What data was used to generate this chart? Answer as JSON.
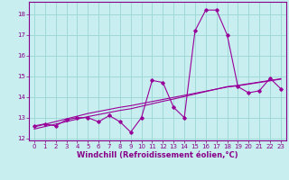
{
  "x_values": [
    0,
    1,
    2,
    3,
    4,
    5,
    6,
    7,
    8,
    9,
    10,
    11,
    12,
    13,
    14,
    15,
    16,
    17,
    18,
    19,
    20,
    21,
    22,
    23
  ],
  "y_main": [
    12.6,
    12.7,
    12.6,
    12.9,
    13.0,
    13.0,
    12.8,
    13.1,
    12.8,
    12.3,
    13.0,
    14.8,
    14.7,
    13.5,
    13.0,
    17.2,
    18.2,
    18.2,
    17.0,
    14.5,
    14.2,
    14.3,
    14.9,
    14.4
  ],
  "y_trend1": [
    12.55,
    12.68,
    12.81,
    12.94,
    13.07,
    13.2,
    13.3,
    13.4,
    13.5,
    13.58,
    13.68,
    13.78,
    13.88,
    13.98,
    14.08,
    14.18,
    14.28,
    14.38,
    14.48,
    14.54,
    14.62,
    14.7,
    14.78,
    14.86
  ],
  "y_trend2": [
    12.45,
    12.57,
    12.69,
    12.81,
    12.93,
    13.05,
    13.15,
    13.25,
    13.35,
    13.43,
    13.55,
    13.67,
    13.79,
    13.9,
    14.02,
    14.14,
    14.26,
    14.38,
    14.5,
    14.56,
    14.64,
    14.72,
    14.8,
    14.88
  ],
  "line_color": "#990099",
  "bg_color": "#c8eef0",
  "grid_color": "#a0d8d8",
  "ylim": [
    11.9,
    18.6
  ],
  "xlim": [
    -0.5,
    23.5
  ],
  "yticks": [
    12,
    13,
    14,
    15,
    16,
    17,
    18
  ],
  "xticks": [
    0,
    1,
    2,
    3,
    4,
    5,
    6,
    7,
    8,
    9,
    10,
    11,
    12,
    13,
    14,
    15,
    16,
    17,
    18,
    19,
    20,
    21,
    22,
    23
  ],
  "xlabel": "Windchill (Refroidissement éolien,°C)",
  "font_color": "#880088",
  "tick_fontsize": 5.0,
  "label_fontsize": 6.0
}
